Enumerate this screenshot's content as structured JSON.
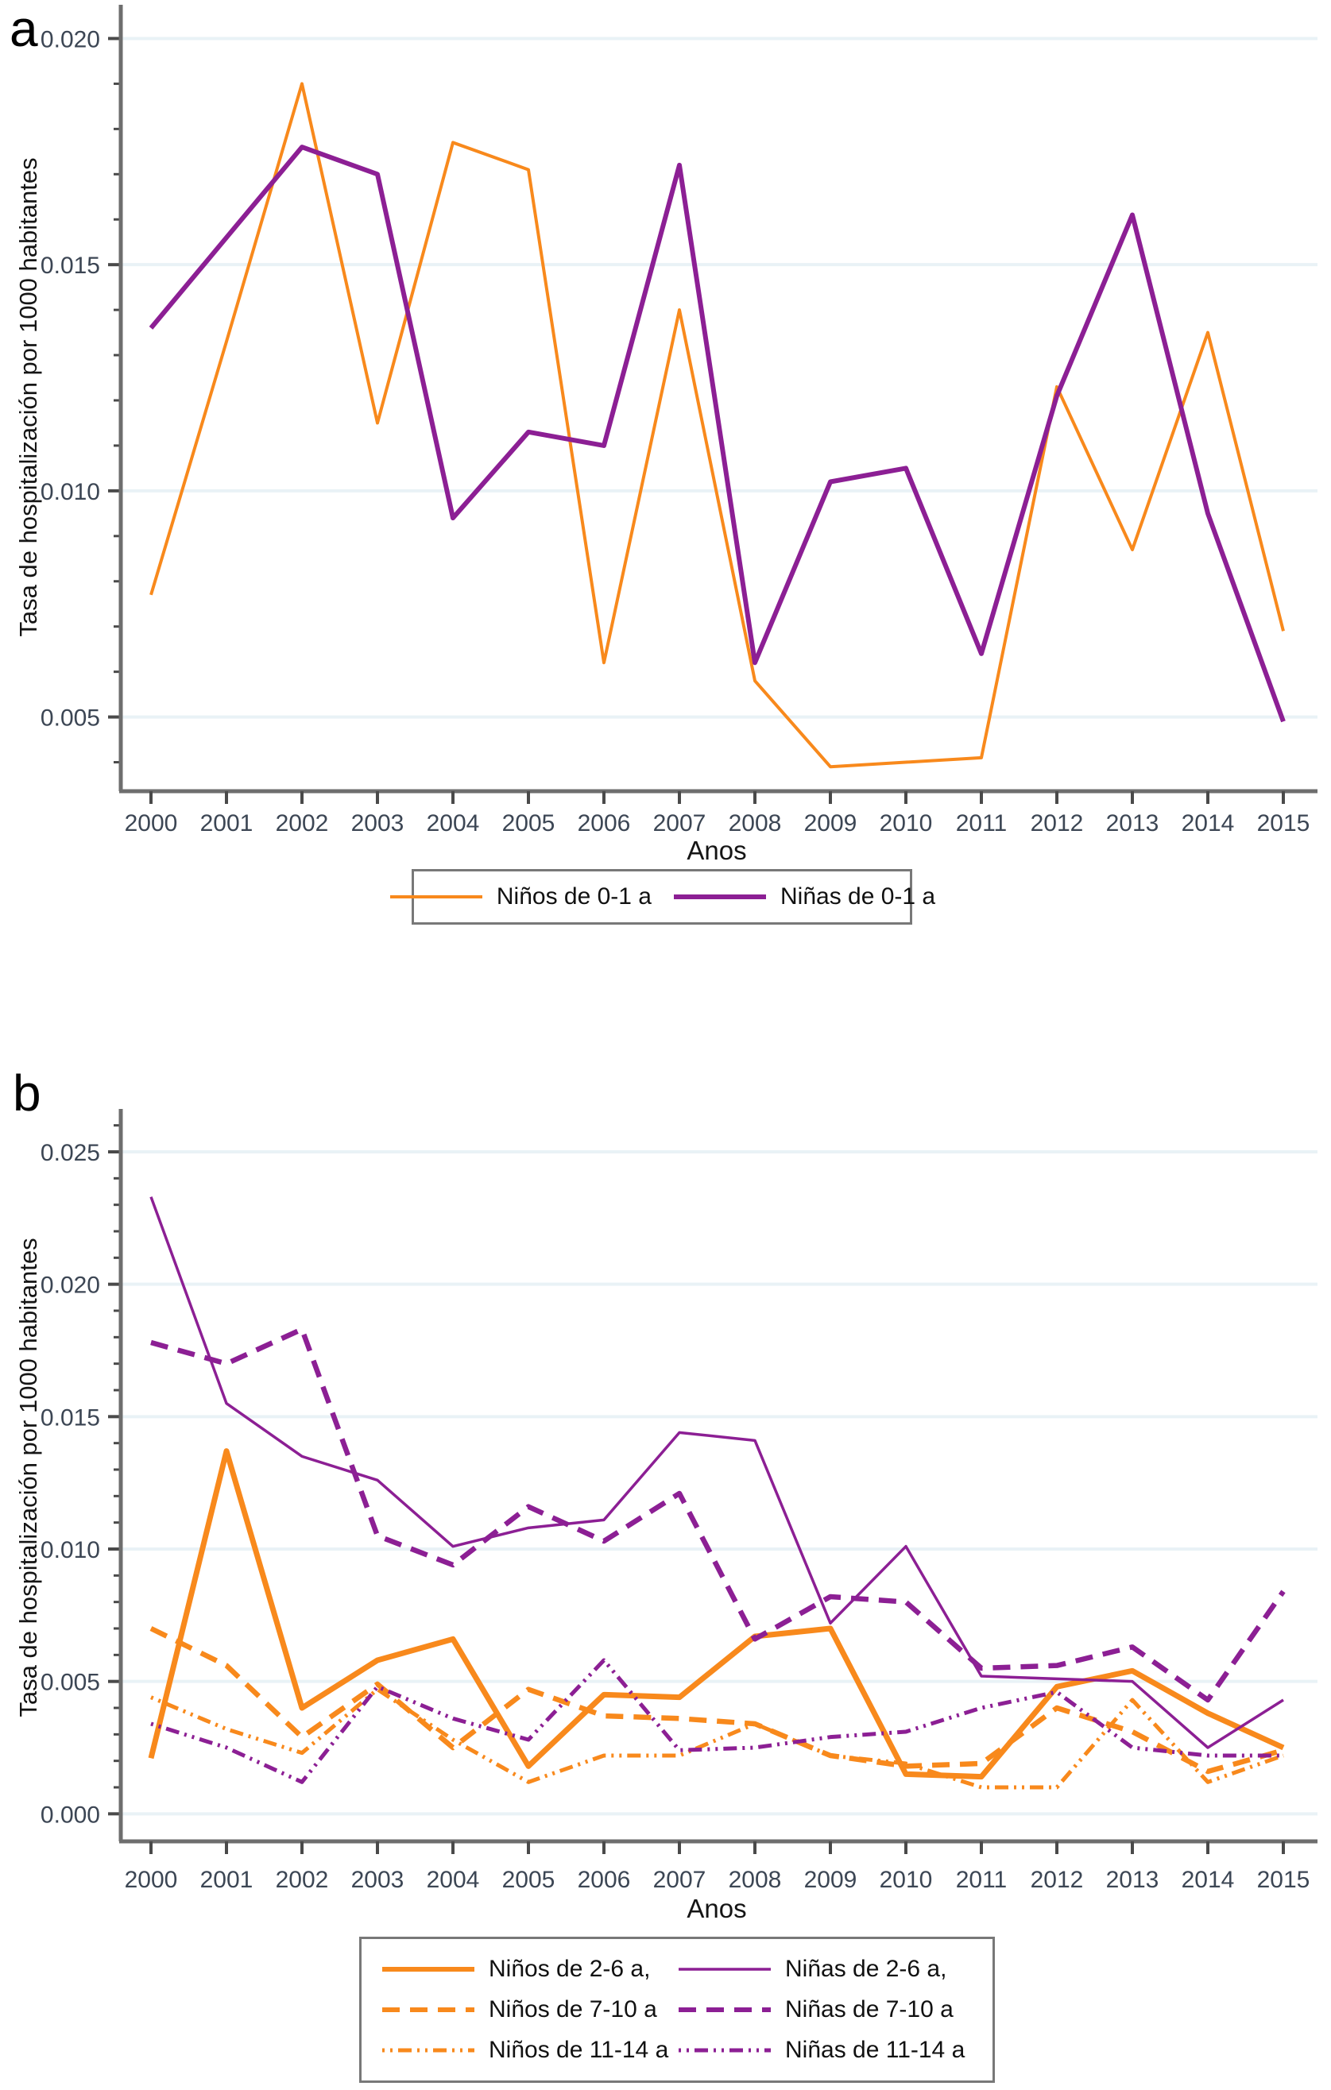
{
  "colors": {
    "orange": "#F8891C",
    "purple": "#8C1F94",
    "axis": "#6E6E6E",
    "tick": "#4A4A4A",
    "tick_text": "#3C4654",
    "grid": "#E9F2F6",
    "legend_border": "#787878"
  },
  "chart_data": [
    {
      "type": "line",
      "panel_label": "a",
      "xlabel": "Anos",
      "ylabel": "Tasa de hospitalización por 1000 habitantes",
      "x": [
        2000,
        2001,
        2002,
        2003,
        2004,
        2005,
        2006,
        2007,
        2008,
        2009,
        2010,
        2011,
        2012,
        2013,
        2014,
        2015
      ],
      "ylim": [
        0.0035,
        0.0205
      ],
      "yticks": [
        0.005,
        0.01,
        0.015,
        0.02
      ],
      "ytick_labels": [
        "0.005",
        "0.010",
        "0.015",
        "0.020"
      ],
      "minor_tick_step": 0.001,
      "grid": "major-horizontal",
      "legend_position": "bottom-center",
      "series": [
        {
          "name": "Niños de 0-1 a",
          "color": "orange",
          "style": "solid",
          "width": 4,
          "values": [
            0.0077,
            0.0133,
            0.019,
            0.0115,
            0.0177,
            0.0171,
            0.0062,
            0.014,
            0.0058,
            0.0039,
            0.004,
            0.0041,
            0.0123,
            0.0087,
            0.0135,
            0.0069
          ]
        },
        {
          "name": "Niñas de 0-1 a",
          "color": "purple",
          "style": "solid",
          "width": 6,
          "values": [
            0.0136,
            0.0156,
            0.0176,
            0.017,
            0.0094,
            0.0113,
            0.011,
            0.0172,
            0.0062,
            0.0102,
            0.0105,
            0.0064,
            0.0121,
            0.0161,
            0.0095,
            0.0049
          ]
        }
      ]
    },
    {
      "type": "line",
      "panel_label": "b",
      "xlabel": "Anos",
      "ylabel": "Tasa de hospitalización por 1000 habitantes",
      "x": [
        2000,
        2001,
        2002,
        2003,
        2004,
        2005,
        2006,
        2007,
        2008,
        2009,
        2010,
        2011,
        2012,
        2013,
        2014,
        2015
      ],
      "ylim": [
        -0.0008,
        0.0262
      ],
      "yticks": [
        0.0,
        0.005,
        0.01,
        0.015,
        0.02,
        0.025
      ],
      "ytick_labels": [
        "0.000",
        "0.005",
        "0.010",
        "0.015",
        "0.020",
        "0.025"
      ],
      "minor_tick_step": 0.001,
      "grid": "major-horizontal",
      "legend_position": "bottom-center",
      "series": [
        {
          "name": "Niños de 2-6 a,",
          "color": "orange",
          "style": "solid",
          "width": 7,
          "values": [
            0.0021,
            0.0137,
            0.004,
            0.0058,
            0.0066,
            0.0018,
            0.0045,
            0.0044,
            0.0067,
            0.007,
            0.0015,
            0.0014,
            0.0048,
            0.0054,
            0.0038,
            0.0025
          ]
        },
        {
          "name": "Niñas de 2-6 a,",
          "color": "purple",
          "style": "solid",
          "width": 3.5,
          "values": [
            0.0233,
            0.0155,
            0.0135,
            0.0126,
            0.0101,
            0.0108,
            0.0111,
            0.0144,
            0.0141,
            0.0072,
            0.0101,
            0.0052,
            0.0051,
            0.005,
            0.0025,
            0.0043
          ]
        },
        {
          "name": "Niños de 7-10 a",
          "color": "orange",
          "style": "dashed",
          "width": 6.5,
          "values": [
            0.007,
            0.0056,
            0.0029,
            0.0049,
            0.0025,
            0.0047,
            0.0037,
            0.0036,
            0.0034,
            0.0022,
            0.0018,
            0.0019,
            0.004,
            0.0031,
            0.0016,
            0.0024
          ]
        },
        {
          "name": "Niñas de 7-10 a",
          "color": "purple",
          "style": "dashed",
          "width": 6.5,
          "values": [
            0.0178,
            0.017,
            0.0183,
            0.0105,
            0.0094,
            0.0116,
            0.0103,
            0.0121,
            0.0066,
            0.0082,
            0.008,
            0.0055,
            0.0056,
            0.0063,
            0.0043,
            0.0084
          ]
        },
        {
          "name": "Niños de 11-14 a",
          "color": "orange",
          "style": "dashdot",
          "width": 5,
          "values": [
            0.0044,
            0.0032,
            0.0023,
            0.0047,
            0.0028,
            0.0012,
            0.0022,
            0.0022,
            0.0034,
            0.0022,
            0.0019,
            0.001,
            0.001,
            0.0043,
            0.0012,
            0.0022
          ]
        },
        {
          "name": "Niñas de 11-14 a",
          "color": "purple",
          "style": "dashdot",
          "width": 5,
          "values": [
            0.0034,
            0.0025,
            0.0012,
            0.0048,
            0.0036,
            0.0028,
            0.0058,
            0.0024,
            0.0025,
            0.0029,
            0.0031,
            0.004,
            0.0046,
            0.0025,
            0.0022,
            0.0022
          ]
        }
      ]
    }
  ]
}
